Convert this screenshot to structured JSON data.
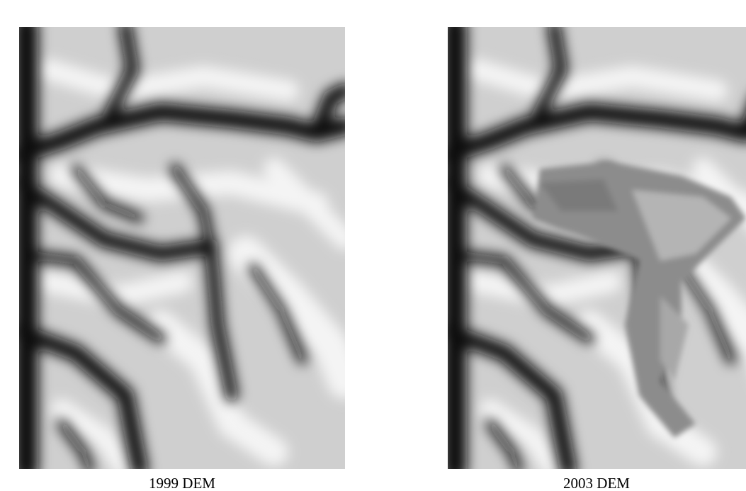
{
  "panels": [
    {
      "caption": "1999 DEM"
    },
    {
      "caption": "2003 DEM"
    }
  ]
}
